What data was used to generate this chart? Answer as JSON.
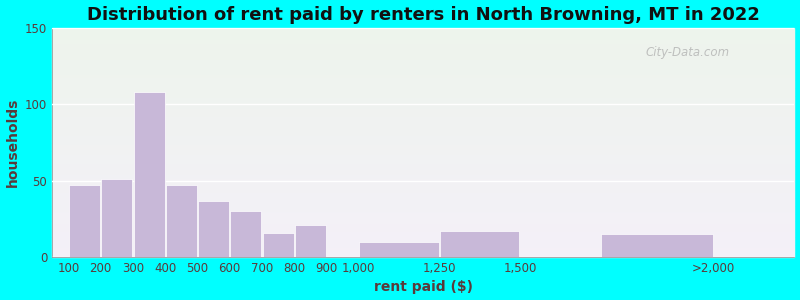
{
  "title": "Distribution of rent paid by renters in North Browning, MT in 2022",
  "xlabel": "rent paid ($)",
  "ylabel": "households",
  "bar_left_edges": [
    100,
    200,
    300,
    400,
    500,
    600,
    700,
    800,
    1000,
    1250,
    1750
  ],
  "bar_widths": [
    100,
    100,
    100,
    100,
    100,
    100,
    100,
    100,
    250,
    250,
    350
  ],
  "values": [
    47,
    51,
    108,
    47,
    37,
    30,
    16,
    21,
    10,
    17,
    15
  ],
  "xtick_positions": [
    100,
    200,
    300,
    400,
    500,
    600,
    700,
    800,
    900,
    1000,
    1250,
    1500,
    2100
  ],
  "xtick_labels": [
    "100",
    "200",
    "300",
    "400",
    "500",
    "600",
    "700",
    "800",
    "900",
    "1,000",
    "1,250",
    "1,500",
    ">2,000"
  ],
  "bar_color": "#C8B8D8",
  "bar_edge_color": "#FFFFFF",
  "title_fontsize": 13,
  "label_fontsize": 10,
  "tick_fontsize": 8.5,
  "ylim": [
    0,
    150
  ],
  "yticks": [
    0,
    50,
    100,
    150
  ],
  "background_outer": "#00FFFF",
  "watermark": "City-Data.com",
  "xlim_min": 50,
  "xlim_max": 2350
}
